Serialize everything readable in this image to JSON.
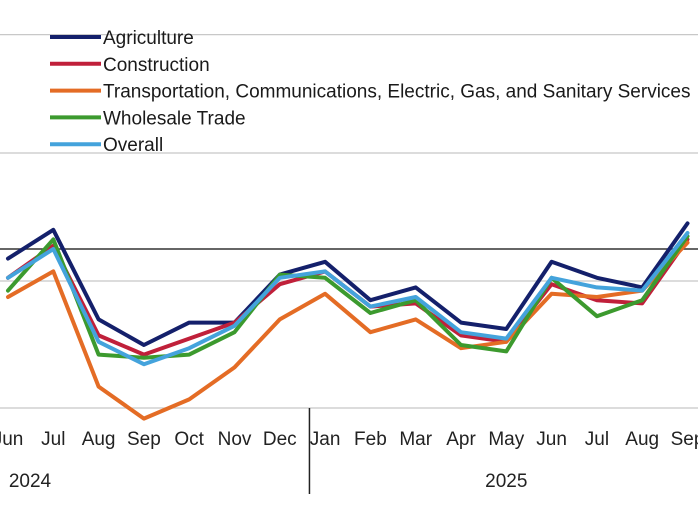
{
  "chart_data": {
    "type": "line",
    "categories": [
      "Jun",
      "Jul",
      "Aug",
      "Sep",
      "Oct",
      "Nov",
      "Dec",
      "Jan",
      "Feb",
      "Mar",
      "Apr",
      "May",
      "Jun",
      "Jul",
      "Aug",
      "Sep"
    ],
    "years": [
      {
        "label": "2024",
        "from": 0,
        "to": 6
      },
      {
        "label": "2025",
        "from": 7,
        "to": 15
      }
    ],
    "grid": true,
    "legend_position": "top-left",
    "reference_line": 0,
    "ylim": [
      -6,
      6
    ],
    "series": [
      {
        "name": "Agriculture",
        "color": "#14206b",
        "values": [
          -0.3,
          0.6,
          -2.2,
          -3.0,
          -2.3,
          -2.3,
          -0.8,
          -0.4,
          -1.6,
          -1.2,
          -2.3,
          -2.5,
          -0.4,
          -0.9,
          -1.2,
          0.8
        ]
      },
      {
        "name": "Construction",
        "color": "#c0203a",
        "values": [
          -0.9,
          0.1,
          -2.7,
          -3.3,
          -2.8,
          -2.3,
          -1.1,
          -0.7,
          -1.8,
          -1.7,
          -2.7,
          -2.9,
          -1.1,
          -1.6,
          -1.7,
          0.3
        ]
      },
      {
        "name": "Transportation, Communications, Electric, Gas, and Sanitary Services",
        "color": "#e46c25",
        "values": [
          -1.5,
          -0.7,
          -4.3,
          -5.3,
          -4.7,
          -3.7,
          -2.2,
          -1.4,
          -2.6,
          -2.2,
          -3.1,
          -2.9,
          -1.4,
          -1.5,
          -1.3,
          0.2
        ]
      },
      {
        "name": "Wholesale Trade",
        "color": "#3c9a2e",
        "values": [
          -1.3,
          0.3,
          -3.3,
          -3.4,
          -3.3,
          -2.6,
          -0.8,
          -0.9,
          -2.0,
          -1.6,
          -3.0,
          -3.2,
          -0.9,
          -2.1,
          -1.6,
          0.4
        ]
      },
      {
        "name": "Overall",
        "color": "#44a3dc",
        "values": [
          -0.9,
          0.0,
          -2.9,
          -3.6,
          -3.1,
          -2.4,
          -0.9,
          -0.7,
          -1.8,
          -1.5,
          -2.6,
          -2.8,
          -0.9,
          -1.2,
          -1.3,
          0.5
        ]
      }
    ]
  }
}
